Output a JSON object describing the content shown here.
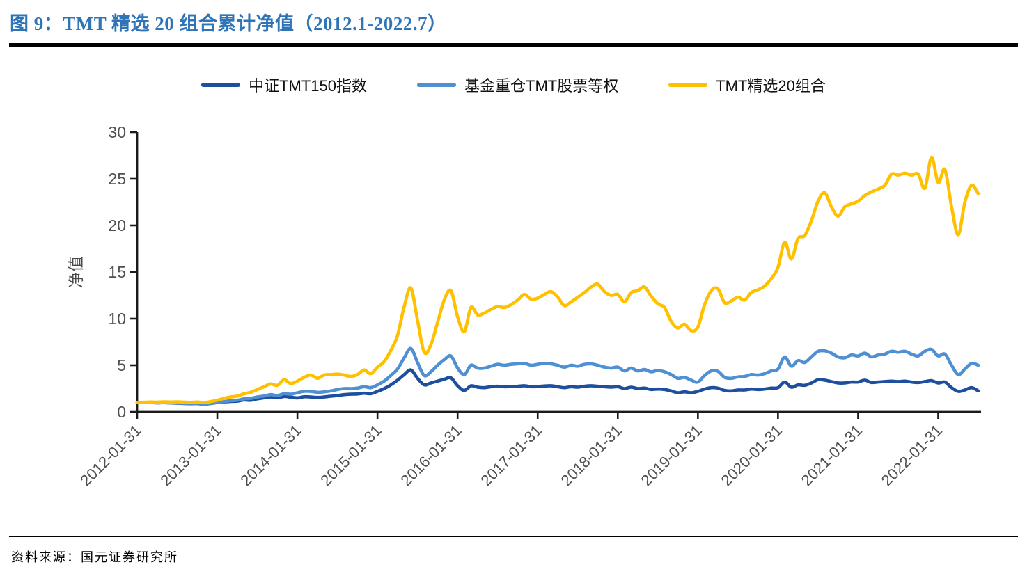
{
  "figure": {
    "title": "图 9：TMT 精选 20 组合累计净值（2012.1-2022.7）",
    "source": "资料来源：国元证券研究所"
  },
  "colors": {
    "title_blue": "#2e74b6",
    "axis_line": "#1a1a1a",
    "tick_label": "#4f4f4f",
    "rule_black": "#000000"
  },
  "chart_data": {
    "type": "line",
    "title": "TMT精选20组合累计净值（2012.1-2022.7）",
    "ylabel": "净值",
    "xlabel": "",
    "ylim": [
      0,
      30
    ],
    "yticks": [
      0,
      5,
      10,
      15,
      20,
      25,
      30
    ],
    "grid": false,
    "legend_position": "top",
    "x_frequency": "monthly",
    "x_start": "2012-01",
    "x_end": "2022-07",
    "x_tick_labels": [
      "2012-01-31",
      "2013-01-31",
      "2014-01-31",
      "2015-01-31",
      "2016-01-31",
      "2017-01-31",
      "2018-01-31",
      "2019-01-31",
      "2020-01-31",
      "2021-01-31",
      "2022-01-31"
    ],
    "x_tick_month_indices": [
      0,
      12,
      24,
      36,
      48,
      60,
      72,
      84,
      96,
      108,
      120
    ],
    "series": [
      {
        "name": "中证TMT150指数",
        "color": "#1d4f9e",
        "values": [
          1.0,
          1.0,
          1.01,
          0.97,
          0.99,
          0.96,
          0.93,
          0.9,
          0.87,
          0.89,
          0.81,
          0.9,
          1.0,
          1.06,
          1.12,
          1.15,
          1.28,
          1.25,
          1.4,
          1.5,
          1.6,
          1.52,
          1.65,
          1.58,
          1.5,
          1.62,
          1.6,
          1.55,
          1.6,
          1.68,
          1.75,
          1.85,
          1.9,
          1.92,
          2.0,
          1.95,
          2.2,
          2.5,
          2.9,
          3.4,
          4.0,
          4.5,
          3.6,
          2.9,
          3.1,
          3.3,
          3.5,
          3.65,
          2.8,
          2.3,
          2.8,
          2.65,
          2.6,
          2.7,
          2.75,
          2.7,
          2.72,
          2.75,
          2.8,
          2.7,
          2.72,
          2.78,
          2.8,
          2.7,
          2.6,
          2.7,
          2.65,
          2.75,
          2.8,
          2.75,
          2.7,
          2.65,
          2.7,
          2.5,
          2.65,
          2.5,
          2.55,
          2.4,
          2.45,
          2.4,
          2.25,
          2.05,
          2.15,
          2.05,
          2.2,
          2.45,
          2.6,
          2.55,
          2.3,
          2.25,
          2.35,
          2.35,
          2.45,
          2.4,
          2.45,
          2.55,
          2.6,
          3.2,
          2.65,
          2.9,
          2.85,
          3.1,
          3.45,
          3.4,
          3.25,
          3.1,
          3.1,
          3.2,
          3.2,
          3.4,
          3.15,
          3.2,
          3.25,
          3.3,
          3.25,
          3.3,
          3.2,
          3.15,
          3.25,
          3.35,
          3.1,
          3.2,
          2.6,
          2.2,
          2.35,
          2.6,
          2.25
        ]
      },
      {
        "name": "基金重仓TMT股票等权",
        "color": "#4e90d2",
        "values": [
          1.0,
          1.0,
          1.02,
          0.98,
          1.0,
          0.97,
          0.95,
          0.92,
          0.88,
          0.9,
          0.82,
          0.92,
          1.02,
          1.1,
          1.2,
          1.25,
          1.4,
          1.45,
          1.6,
          1.7,
          1.85,
          1.75,
          1.95,
          1.9,
          2.05,
          2.2,
          2.2,
          2.1,
          2.15,
          2.25,
          2.4,
          2.5,
          2.5,
          2.55,
          2.7,
          2.6,
          2.9,
          3.3,
          3.9,
          4.6,
          5.8,
          6.8,
          5.3,
          3.9,
          4.3,
          5.0,
          5.6,
          6.0,
          4.7,
          4.0,
          5.0,
          4.7,
          4.7,
          4.9,
          5.1,
          5.0,
          5.1,
          5.15,
          5.2,
          5.0,
          5.1,
          5.2,
          5.15,
          5.0,
          4.8,
          5.0,
          4.9,
          5.1,
          5.15,
          5.0,
          4.8,
          4.7,
          4.8,
          4.4,
          4.7,
          4.4,
          4.55,
          4.3,
          4.45,
          4.3,
          4.0,
          3.6,
          3.7,
          3.4,
          3.2,
          3.9,
          4.4,
          4.35,
          3.7,
          3.6,
          3.75,
          3.8,
          4.0,
          3.95,
          4.1,
          4.4,
          4.6,
          5.9,
          4.9,
          5.5,
          5.3,
          5.9,
          6.5,
          6.55,
          6.3,
          5.9,
          5.8,
          6.1,
          6.0,
          6.3,
          5.9,
          6.1,
          6.2,
          6.5,
          6.4,
          6.5,
          6.2,
          6.0,
          6.5,
          6.7,
          6.0,
          6.2,
          5.0,
          4.0,
          4.6,
          5.2,
          5.0
        ]
      },
      {
        "name": "TMT精选20组合",
        "color": "#ffc000",
        "values": [
          1.0,
          1.03,
          1.06,
          1.04,
          1.08,
          1.06,
          1.08,
          1.05,
          1.02,
          1.06,
          1.0,
          1.1,
          1.25,
          1.45,
          1.6,
          1.7,
          1.95,
          2.1,
          2.4,
          2.7,
          3.0,
          2.85,
          3.45,
          3.05,
          3.3,
          3.7,
          3.95,
          3.6,
          3.95,
          4.0,
          4.05,
          3.95,
          3.8,
          4.0,
          4.5,
          4.1,
          4.8,
          5.4,
          6.6,
          8.2,
          11.3,
          13.3,
          9.8,
          6.4,
          7.2,
          9.6,
          12.0,
          13.0,
          10.2,
          8.6,
          11.2,
          10.4,
          10.6,
          11.0,
          11.3,
          11.2,
          11.5,
          12.0,
          12.6,
          12.1,
          12.2,
          12.6,
          12.9,
          12.3,
          11.4,
          11.8,
          12.3,
          12.8,
          13.4,
          13.7,
          12.9,
          12.5,
          12.6,
          11.8,
          12.8,
          13.0,
          13.4,
          12.4,
          11.6,
          11.2,
          9.7,
          9.0,
          9.4,
          8.7,
          9.1,
          11.5,
          13.0,
          13.2,
          11.7,
          11.9,
          12.3,
          12.0,
          12.8,
          13.1,
          13.5,
          14.3,
          15.5,
          18.2,
          16.4,
          18.6,
          18.9,
          20.5,
          22.6,
          23.5,
          22.0,
          21.0,
          22.0,
          22.3,
          22.6,
          23.2,
          23.6,
          23.9,
          24.3,
          25.5,
          25.4,
          25.6,
          25.4,
          25.5,
          24.0,
          27.3,
          24.6,
          26.0,
          22.0,
          19.0,
          22.5,
          24.3,
          23.4
        ]
      }
    ]
  }
}
